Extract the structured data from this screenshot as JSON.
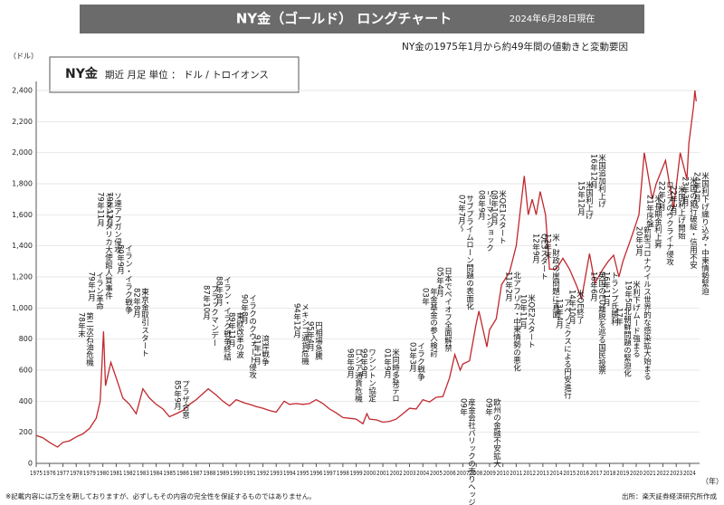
{
  "header": {
    "title": "NY金（ゴールド） ロングチャート",
    "date": "2024年6月28日現在"
  },
  "subtitle": "NY金の1975年1月から約49年間の値動きと変動要因",
  "footer": {
    "note": "※記載内容には万全を期しておりますが、必ずしもその内容の完全性を保証するものではありません。",
    "source": "出所：楽天証券経済研究所作成"
  },
  "chart_data": {
    "type": "line",
    "legend_note": "期近 月足 単位 ： ドル / トロイオンス",
    "y_unit": "（ドル）",
    "x_unit": "（年）",
    "x": [
      1975.0,
      1975.5,
      1976.0,
      1976.6,
      1977.0,
      1977.5,
      1978.0,
      1978.5,
      1979.0,
      1979.5,
      1979.8,
      1980.05,
      1980.2,
      1980.6,
      1981.0,
      1981.5,
      1982.0,
      1982.5,
      1983.0,
      1983.5,
      1984.0,
      1984.5,
      1985.0,
      1985.5,
      1986.0,
      1986.5,
      1987.0,
      1987.9,
      1988.5,
      1989.0,
      1989.5,
      1990.0,
      1990.6,
      1991.0,
      1991.5,
      1992.0,
      1992.5,
      1993.0,
      1993.6,
      1994.0,
      1994.5,
      1995.0,
      1995.5,
      1996.0,
      1996.5,
      1997.0,
      1997.5,
      1998.0,
      1998.5,
      1999.0,
      1999.5,
      1999.8,
      2000.0,
      2000.5,
      2001.0,
      2001.5,
      2002.0,
      2002.5,
      2003.0,
      2003.5,
      2004.0,
      2004.5,
      2005.0,
      2005.5,
      2006.0,
      2006.4,
      2006.8,
      2007.0,
      2007.5,
      2008.0,
      2008.2,
      2008.8,
      2009.0,
      2009.5,
      2009.9,
      2010.5,
      2011.0,
      2011.6,
      2011.9,
      2012.2,
      2012.5,
      2012.8,
      2013.2,
      2013.5,
      2014.0,
      2014.5,
      2015.0,
      2015.5,
      2015.9,
      2016.5,
      2016.9,
      2017.5,
      2017.9,
      2018.3,
      2018.7,
      2019.0,
      2019.5,
      2019.9,
      2020.2,
      2020.6,
      2020.9,
      2021.2,
      2021.5,
      2022.2,
      2022.8,
      2023.3,
      2023.8,
      2023.95,
      2024.3,
      2024.4,
      2024.5
    ],
    "series": [
      {
        "name": "NY金",
        "color": "#c0282d",
        "values": [
          180,
          165,
          135,
          105,
          135,
          145,
          170,
          190,
          225,
          290,
          400,
          850,
          500,
          650,
          550,
          420,
          380,
          320,
          480,
          420,
          380,
          350,
          300,
          320,
          340,
          380,
          410,
          480,
          440,
          400,
          370,
          410,
          390,
          380,
          365,
          355,
          340,
          330,
          400,
          380,
          385,
          380,
          385,
          410,
          385,
          350,
          325,
          295,
          290,
          285,
          255,
          320,
          285,
          280,
          265,
          270,
          285,
          320,
          355,
          350,
          410,
          395,
          425,
          430,
          550,
          700,
          600,
          640,
          660,
          900,
          980,
          750,
          860,
          930,
          1150,
          1230,
          1400,
          1850,
          1600,
          1700,
          1600,
          1750,
          1600,
          1250,
          1250,
          1320,
          1250,
          1150,
          1060,
          1350,
          1160,
          1250,
          1300,
          1340,
          1200,
          1300,
          1420,
          1520,
          1600,
          2000,
          1850,
          1700,
          1800,
          1950,
          1640,
          2000,
          1830,
          2060,
          2300,
          2400,
          2330
        ]
      }
    ],
    "xlim": [
      1975,
      2024.75
    ],
    "ylim": [
      0,
      2400
    ],
    "xticks": [
      1975,
      1976,
      1977,
      1978,
      1979,
      1980,
      1981,
      1982,
      1983,
      1984,
      1985,
      1986,
      1987,
      1988,
      1989,
      1990,
      1991,
      1992,
      1993,
      1994,
      1995,
      1996,
      1997,
      1998,
      1999,
      2000,
      2001,
      2002,
      2003,
      2004,
      2005,
      2006,
      2007,
      2008,
      2009,
      2010,
      2011,
      2012,
      2013,
      2014,
      2015,
      2016,
      2017,
      2018,
      2019,
      2020,
      2021,
      2022,
      2023,
      2024
    ],
    "yticks": [
      0,
      200,
      400,
      600,
      800,
      {
        "value": 1000,
        "label": "1,000"
      },
      {
        "value": 1200,
        "label": "1,200"
      },
      {
        "value": 1400,
        "label": "1,400"
      },
      {
        "value": 1600,
        "label": "1,600"
      },
      {
        "value": 1800,
        "label": "1,800"
      },
      {
        "value": 2000,
        "label": "2,000"
      },
      {
        "value": 2200,
        "label": "2,200"
      },
      {
        "value": 2400,
        "label": "2,400"
      }
    ],
    "grid": true,
    "annotations": [
      {
        "date": "78年末",
        "event": "第二次石油危機"
      },
      {
        "date": "79年1月",
        "event": "イラン革命"
      },
      {
        "date": "79年11月",
        "event": "イランアメリカ大使館人質事件"
      },
      {
        "date": "79年12月",
        "event": "ソ連アフガン侵攻"
      },
      {
        "date": "80年9月",
        "event": "イラン・イラク戦争"
      },
      {
        "date": "82年8月",
        "event": "東京金取引スタート"
      },
      {
        "date": "85年9月",
        "event": "プラザ合意"
      },
      {
        "date": "87年10月",
        "event": "ブラックマンデー"
      },
      {
        "date": "88年8月",
        "event": "イラン・イラク戦争終結"
      },
      {
        "date": "89年11月",
        "event": "東欧改革の波"
      },
      {
        "date": "90年8月",
        "event": "イラクのクウェート侵攻"
      },
      {
        "date": "91年1月",
        "event": "湾岸戦争"
      },
      {
        "date": "94年12月",
        "event": "メキシコ通貨危機"
      },
      {
        "date": "95年4月",
        "event": "円相場急騰"
      },
      {
        "date": "98年8月",
        "event": "ロシア通貨危機"
      },
      {
        "date": "99年9月",
        "event": "ワシントン協定"
      },
      {
        "date": "01年9月",
        "event": "米同時多発テロ"
      },
      {
        "date": "03年3月",
        "event": "イラク戦争"
      },
      {
        "date": "03年",
        "event": "年金基金の参入検討"
      },
      {
        "date": "05年4月",
        "event": "日本でペイオフ全面解禁"
      },
      {
        "date": "07年7月～",
        "event": "サブプライムローン問題の表面化"
      },
      {
        "date": "08年9月",
        "event": "リーマンショック"
      },
      {
        "date": "08年10月",
        "event": "米QE1スタート"
      },
      {
        "date": "09年",
        "event": "産金会社バリックの売りヘッジ外し"
      },
      {
        "date": "09年",
        "event": "欧州の金融不安拡大"
      },
      {
        "date": "11年2月",
        "event": "北アフリカ・中東情勢の悪化"
      },
      {
        "date": "10年11月",
        "event": "米QE2スタート"
      },
      {
        "date": "12年9月",
        "event": "QE3スタート"
      },
      {
        "date": "12年末",
        "event": "米・財政の崖問題に直面"
      },
      {
        "date": "13年4月",
        "event": "アベノミクスによる円安進行"
      },
      {
        "date": "14年10月",
        "event": "米QE終了"
      },
      {
        "date": "15年12月",
        "event": "米国利上げ"
      },
      {
        "date": "16年12月",
        "event": "米国追加利上げ"
      },
      {
        "date": "16年6月",
        "event": "英国のEU離脱を巡る国民投票"
      },
      {
        "date": "16年11月",
        "event": "トランプ氏勝利"
      },
      {
        "date": "17年",
        "event": "北朝鮮問題の緊迫化"
      },
      {
        "date": "19年5月",
        "event": "米利下げムード強まる"
      },
      {
        "date": "20年3月",
        "event": "新型コロナウイルス世界的な感染拡大始まる"
      },
      {
        "date": "21年序盤",
        "event": "米長期金利上昇"
      },
      {
        "date": "22年2月",
        "event": "ロシアのウクライナ侵攻"
      },
      {
        "date": "22年3月",
        "event": "米国利上げ開始"
      },
      {
        "date": "23年3月",
        "event": "米国の銀行破綻・信用不安"
      },
      {
        "date": "24年1月～",
        "event": "米国利下げ織り込み・中東情勢緊迫"
      }
    ]
  }
}
